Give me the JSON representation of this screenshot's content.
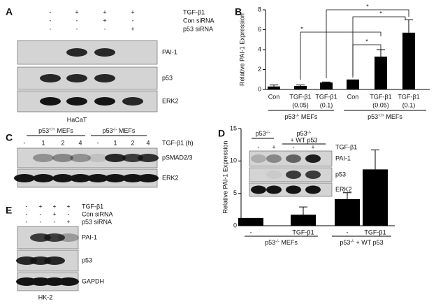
{
  "blots": [
    {
      "panel_label": "A",
      "conditions": [
        {
          "name": "TGF-β1",
          "lanes": [
            "-",
            "+",
            "+",
            "+"
          ]
        },
        {
          "name": "Con siRNA",
          "lanes": [
            "-",
            "-",
            "+",
            "-"
          ]
        },
        {
          "name": "p53 siRNA",
          "lanes": [
            "-",
            "-",
            "-",
            "+"
          ]
        }
      ],
      "bands": [
        "PAI-1",
        "p53",
        "ERK2"
      ],
      "cell_line": "HaCaT"
    },
    {
      "panel_label": "C",
      "groups": [
        {
          "label": [
            "p53",
            "+/+",
            " MEFs"
          ]
        },
        {
          "label": [
            "p53",
            "-/-",
            " MEFs"
          ]
        }
      ],
      "condition": "TGF-β1 (h)",
      "lanes": [
        "-",
        "1",
        "2",
        "4",
        "-",
        "1",
        "2",
        "4"
      ],
      "bands": [
        "pSMAD2/3",
        "ERK2"
      ]
    },
    {
      "panel_label": "E",
      "conditions": [
        {
          "name": "TGF-β1",
          "lanes": [
            "-",
            "+",
            "+",
            "+"
          ]
        },
        {
          "name": "Con siRNA",
          "lanes": [
            "-",
            "-",
            "+",
            "-"
          ]
        },
        {
          "name": "p53 siRNA",
          "lanes": [
            "-",
            "-",
            "-",
            "+"
          ]
        }
      ],
      "bands": [
        "PAI-1",
        "p53",
        "GAPDH"
      ],
      "cell_line": "HK-2"
    },
    {
      "groups": [
        {
          "label": [
            "p53",
            "-/-"
          ]
        },
        {
          "label": [
            "p53",
            "-/-"
          ],
          "line2": "+ WT p53"
        }
      ],
      "condition": "TGF-β1",
      "lanes": [
        "-",
        "+",
        "-",
        "+"
      ],
      "bands": [
        "PAI-1",
        "p53",
        "ERK2"
      ]
    }
  ],
  "chart_data": [
    {
      "type": "bar",
      "panel_label": "B",
      "y_label": "Relative PAI-1 Expression",
      "categories": [
        [
          "Con"
        ],
        [
          "TGF-β1",
          "(0.05)"
        ],
        [
          "TGF-β1",
          "(0.1)"
        ],
        [
          "Con"
        ],
        [
          "TGF-β1",
          "(0.05)"
        ],
        [
          "TGF-β1",
          "(0.1)"
        ]
      ],
      "series": [
        {
          "color": "#000000",
          "values": [
            0.3,
            0.35,
            0.7,
            1.0,
            3.3,
            5.7
          ],
          "errors": [
            0.15,
            0.1,
            0.05,
            null,
            0.7,
            1.3
          ]
        }
      ],
      "groups": [
        {
          "label": [
            "p53",
            "-/-",
            " MEFs"
          ]
        },
        {
          "label": [
            "p53",
            "+/+",
            " MEFs"
          ]
        }
      ],
      "annotations": [
        "*",
        "*",
        "*",
        "*"
      ],
      "ylim": [
        0,
        8
      ],
      "yticks": [
        0,
        2,
        4,
        6,
        8
      ]
    },
    {
      "type": "bar",
      "panel_label": "D",
      "y_label": "Relative PAI-1 Expression",
      "categories": [
        [
          "-"
        ],
        [
          "TGF-β1"
        ],
        [
          "-"
        ],
        [
          "TGF-β1"
        ]
      ],
      "series": [
        {
          "color": "#000000",
          "values": [
            1.2,
            1.7,
            4.1,
            8.7
          ],
          "errors": [
            null,
            1.2,
            1.0,
            3.0
          ]
        }
      ],
      "groups": [
        {
          "label": [
            "p53",
            "-/-",
            " MEFs"
          ]
        },
        {
          "label": [
            "p53",
            "-/-",
            " + WT p53"
          ]
        }
      ],
      "ylim": [
        0,
        15
      ],
      "yticks": [
        0,
        5,
        10,
        15
      ]
    }
  ]
}
